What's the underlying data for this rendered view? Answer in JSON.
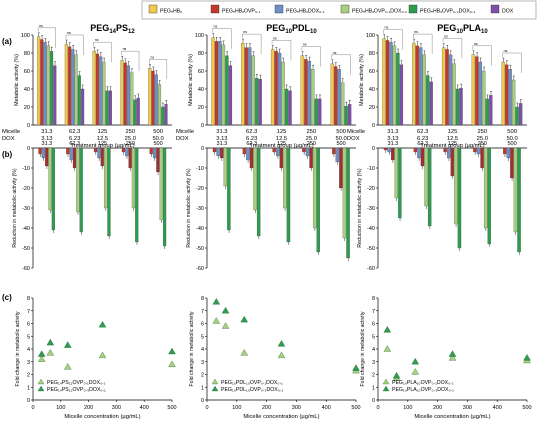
{
  "legend": [
    {
      "label": "PEGₙHBₓ",
      "color": "#f2c94c"
    },
    {
      "label": "PEGₙHBₓOVP₀.₁",
      "color": "#c0392b"
    },
    {
      "label": "PEGₙHBₓDOX₀.₁",
      "color": "#6d8fc7"
    },
    {
      "label": "PEGₙHBₓOVP₀.₁DOX₀.₁",
      "color": "#a6cf7e"
    },
    {
      "label": "PEGₙHBₓOVP₀.₃DOX₀.₁",
      "color": "#2e9b4f"
    },
    {
      "label": "DOX",
      "color": "#7d4fa8"
    }
  ],
  "panel_labels": {
    "a": "(a)",
    "b": "(b)",
    "c": "(c)"
  },
  "titles": [
    {
      "main": "PEG",
      "s1": "14",
      "mid": "PS",
      "s2": "12"
    },
    {
      "main": "PEG",
      "s1": "10",
      "mid": "PDL",
      "s2": "10"
    },
    {
      "main": "PEG",
      "s1": "10",
      "mid": "PLA",
      "s2": "10"
    }
  ],
  "axis_text": {
    "a_ylabel": "Metabolic activity (%)",
    "b_ylabel": "Reduction in metabolic activity (%)",
    "c_ylabel": "Fold change in metabolic activity",
    "a_xlabel": "Treatment group (µg/mL)",
    "c_xlabel": "Micelle concentration (µg/mL)",
    "row_micelle": "Micelle",
    "row_dox": "DOX",
    "sig": "ns"
  },
  "chart_data": [
    {
      "type": "bar",
      "panel": "a",
      "ylim": [
        0,
        100
      ],
      "yticks": [
        0,
        20,
        40,
        60,
        80,
        100
      ],
      "categories_micelle": [
        "31.3",
        "62.3",
        "125",
        "250",
        "500"
      ],
      "categories_dox": [
        "3.13",
        "6.23",
        "12.5",
        "25.0",
        "50.0"
      ],
      "groups": [
        {
          "series": [
            [
              98,
              95,
              92,
              88,
              82,
              66
            ],
            [
              90,
              87,
              84,
              78,
              55,
              40
            ],
            [
              82,
              79,
              76,
              70,
              38,
              38
            ],
            [
              72,
              69,
              66,
              58,
              28,
              30
            ],
            [
              63,
              60,
              56,
              45,
              20,
              23
            ]
          ]
        },
        {
          "series": [
            [
              97,
              93,
              93,
              89,
              77,
              66
            ],
            [
              91,
              86,
              86,
              77,
              52,
              51
            ],
            [
              84,
              82,
              80,
              70,
              40,
              38
            ],
            [
              77,
              73,
              71,
              62,
              29,
              29
            ],
            [
              68,
              65,
              62,
              47,
              21,
              23
            ]
          ]
        },
        {
          "series": [
            [
              96,
              94,
              92,
              88,
              80,
              67
            ],
            [
              91,
              88,
              86,
              78,
              55,
              48
            ],
            [
              86,
              84,
              78,
              68,
              40,
              41
            ],
            [
              78,
              76,
              70,
              60,
              29,
              33
            ],
            [
              70,
              67,
              62,
              50,
              20,
              24
            ]
          ]
        }
      ]
    },
    {
      "type": "bar",
      "panel": "b",
      "ylim": [
        -60,
        0
      ],
      "yticks": [
        0,
        -10,
        -20,
        -30,
        -40,
        -50,
        -60
      ],
      "categories_micelle": [
        "31.3",
        "62.3",
        "125",
        "250",
        "500"
      ],
      "groups": [
        {
          "series": [
            [
              -3,
              -5,
              -9,
              -31,
              -41
            ],
            [
              -3,
              -6,
              -10,
              -32,
              -42
            ],
            [
              -2,
              -5,
              -9,
              -30,
              -44
            ],
            [
              -2,
              -4,
              -10,
              -30,
              -47
            ],
            [
              -3,
              -5,
              -12,
              -36,
              -49
            ]
          ]
        },
        {
          "series": [
            [
              -2,
              -4,
              -5,
              -19,
              -41
            ],
            [
              -3,
              -6,
              -10,
              -31,
              -44
            ],
            [
              -2,
              -4,
              -10,
              -30,
              -47
            ],
            [
              -2,
              -4,
              -10,
              -40,
              -52
            ],
            [
              -3,
              -7,
              -20,
              -45,
              -55
            ]
          ]
        },
        {
          "series": [
            [
              -1,
              -2,
              -6,
              -25,
              -35
            ],
            [
              -2,
              -5,
              -9,
              -29,
              -39
            ],
            [
              -2,
              -5,
              -14,
              -38,
              -50
            ],
            [
              -2,
              -3,
              -10,
              -40,
              -48
            ],
            [
              -3,
              -5,
              -15,
              -42,
              -52
            ]
          ]
        }
      ]
    },
    {
      "type": "scatter",
      "panel": "c",
      "ylim": [
        0,
        8
      ],
      "yticks": [
        0,
        1,
        2,
        3,
        4,
        5,
        6,
        7,
        8
      ],
      "xlim": [
        0,
        500
      ],
      "xticks": [
        0,
        100,
        200,
        300,
        400,
        500
      ],
      "groups": [
        {
          "series": [
            {
              "name": "PEG₁₄PS₁₂OVP₀.₁DOX₀.₁",
              "x": [
                31.3,
                62.3,
                125,
                250,
                500
              ],
              "y": [
                3.2,
                3.7,
                2.6,
                3.5,
                2.8
              ],
              "shade": "light"
            },
            {
              "name": "PEG₁₄PS₁₂OVP₀.₃DOX₀.₁",
              "x": [
                31.3,
                62.3,
                125,
                250,
                500
              ],
              "y": [
                3.6,
                4.5,
                4.3,
                5.9,
                3.8
              ],
              "shade": "dark"
            }
          ]
        },
        {
          "series": [
            {
              "name": "PEG₁₀PDL₁₀OVP₀.₁DOX₀.₁",
              "x": [
                31.3,
                62.3,
                125,
                250,
                500
              ],
              "y": [
                6.2,
                5.8,
                3.7,
                3.5,
                2.3
              ],
              "shade": "light"
            },
            {
              "name": "PEG₁₀PDL₁₀OVP₀.₃DOX₀.₁",
              "x": [
                31.3,
                62.3,
                125,
                250,
                500
              ],
              "y": [
                7.7,
                7.0,
                6.3,
                4.4,
                2.5
              ],
              "shade": "dark"
            }
          ]
        },
        {
          "series": [
            {
              "name": "PEG₁₀PLA₁₀OVP₀.₁DOX₀.₁",
              "x": [
                31.3,
                62.3,
                125,
                250,
                500
              ],
              "y": [
                4.0,
                1.7,
                2.2,
                3.3,
                3.1
              ],
              "shade": "light"
            },
            {
              "name": "PEG₁₀PLA₁₀OVP₀.₃DOX₀.₁",
              "x": [
                31.3,
                62.3,
                125,
                250,
                500
              ],
              "y": [
                5.5,
                1.9,
                3.0,
                3.6,
                3.3
              ],
              "shade": "dark"
            }
          ]
        }
      ]
    }
  ],
  "colors": {
    "light_tri": "#a6cf7e",
    "dark_tri": "#2e9b4f",
    "axis": "#000000",
    "bracket": "#555555"
  }
}
